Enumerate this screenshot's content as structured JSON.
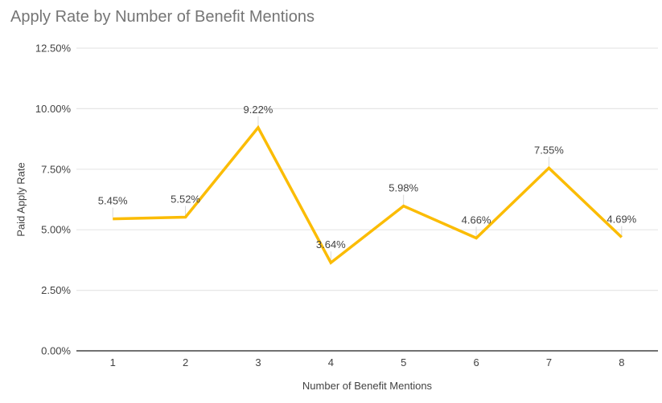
{
  "title": "Apply Rate by Number of Benefit Mentions",
  "chart_data": {
    "type": "line",
    "title": "Apply Rate by Number of Benefit Mentions",
    "xlabel": "Number of Benefit Mentions",
    "ylabel": "Paid Apply Rate",
    "categories": [
      "1",
      "2",
      "3",
      "4",
      "5",
      "6",
      "7",
      "8"
    ],
    "values": [
      5.45,
      5.52,
      9.22,
      3.64,
      5.98,
      4.66,
      7.55,
      4.69
    ],
    "data_labels": [
      "5.45%",
      "5.52%",
      "9.22%",
      "3.64%",
      "5.98%",
      "4.66%",
      "7.55%",
      "4.69%"
    ],
    "ylim": [
      0,
      12.5
    ],
    "yticks": [
      0,
      2.5,
      5,
      7.5,
      10,
      12.5
    ],
    "ytick_labels": [
      "0.00%",
      "2.50%",
      "5.00%",
      "7.50%",
      "10.00%",
      "12.50%"
    ],
    "grid": "horizontal",
    "legend": "none"
  },
  "colors": {
    "line": "#FBBC04",
    "title_text": "#757575",
    "axis_text": "#424242",
    "label_text": "#424242",
    "gridline": "#E6E6E6",
    "baseline": "#424242",
    "leader_line": "#D9D9D9",
    "background": "#FFFFFF"
  }
}
